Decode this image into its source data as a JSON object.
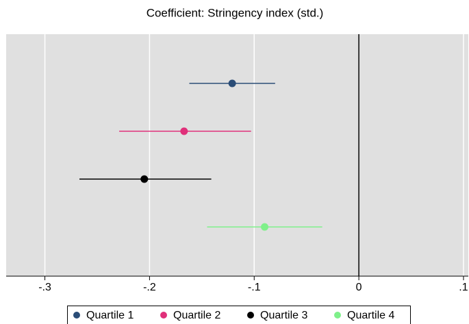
{
  "chart_data": {
    "type": "coefplot",
    "title": "Coefficient: Stringency index (std.)",
    "series": [
      {
        "name": "Quartile 1",
        "color": "#2b4d77",
        "value": -0.121,
        "low": -0.162,
        "high": -0.08
      },
      {
        "name": "Quartile 2",
        "color": "#e0307a",
        "value": -0.167,
        "low": -0.229,
        "high": -0.103
      },
      {
        "name": "Quartile 3",
        "color": "#000000",
        "value": -0.205,
        "low": -0.267,
        "high": -0.141
      },
      {
        "name": "Quartile 4",
        "color": "#7ff08a",
        "value": -0.09,
        "low": -0.145,
        "high": -0.035
      }
    ],
    "xlim": [
      -0.337,
      0.1046
    ],
    "xticks": [
      {
        "value": -0.3,
        "label": "-.3"
      },
      {
        "value": -0.2,
        "label": "-.2"
      },
      {
        "value": -0.1,
        "label": "-.1"
      },
      0,
      {
        "value": 0.1,
        "label": ".1"
      }
    ],
    "reference_line": 0,
    "grid": true,
    "legend": "bottom"
  }
}
